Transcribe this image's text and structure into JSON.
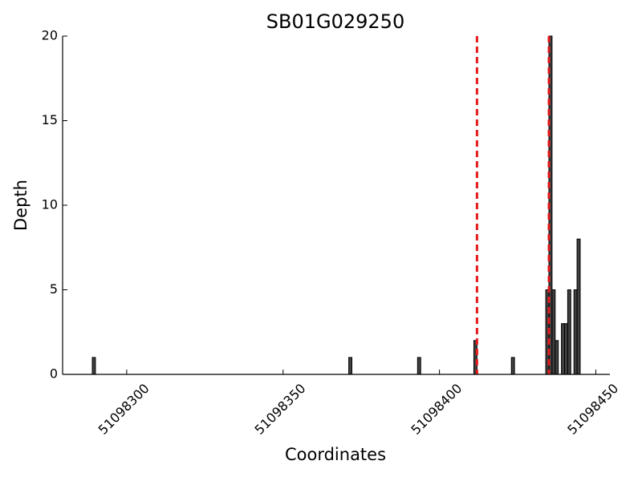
{
  "chart_data": {
    "type": "bar",
    "title": "SB01G029250",
    "x_label": "Coordinates",
    "y_label": "Depth",
    "x": [
      51098289,
      51098371,
      51098393,
      51098411,
      51098423,
      51098434,
      51098435,
      51098436,
      51098437,
      51098439,
      51098440,
      51098441,
      51098443,
      51098444
    ],
    "values": [
      1,
      1,
      1,
      2,
      1,
      5,
      20,
      5,
      2,
      3,
      3,
      5,
      5,
      8
    ],
    "bar_width": 1,
    "color": "#404040",
    "vlines": [
      {
        "x": 51098435,
        "color": "#000000"
      },
      {
        "x": 51098412,
        "color": "#e41a1c"
      },
      {
        "x": 51098435,
        "color": "#e41a1c"
      }
    ],
    "xlim": [
      51098279.5,
      51098454.5
    ],
    "xticks": [
      51098300,
      51098350,
      51098400,
      51098450
    ],
    "ylim": [
      0,
      20
    ],
    "yticks": [
      0,
      5,
      10,
      15,
      20
    ]
  }
}
